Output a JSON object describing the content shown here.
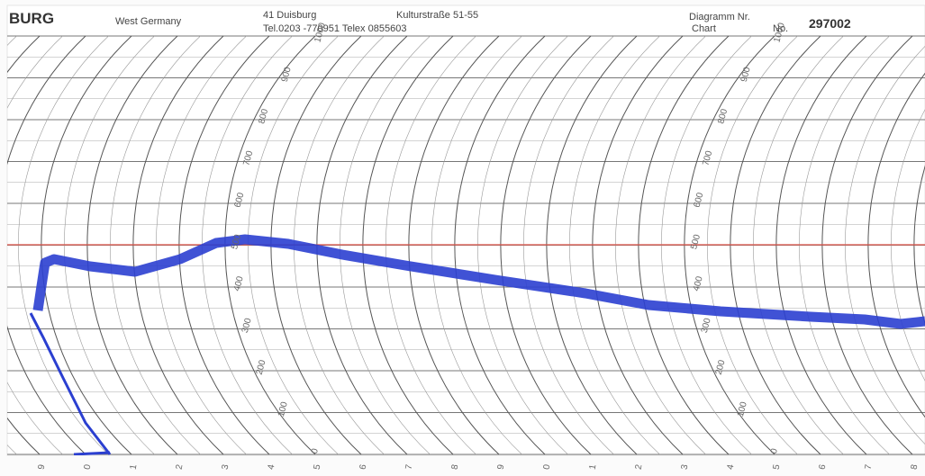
{
  "header": {
    "brand": "BURG",
    "country": "West Germany",
    "city": "41 Duisburg",
    "street": "Kulturstraße 51-55",
    "phone": "Tel.0203 -770951 Telex 0855603",
    "chart_label_de": "Diagramm Nr.",
    "chart_label_en": "Chart",
    "number_label": "No.",
    "number": "297002"
  },
  "scale_labels": [
    "0",
    "100",
    "200",
    "300",
    "400",
    "500",
    "600",
    "700",
    "800",
    "900",
    "1000"
  ],
  "hour_labels": [
    "9",
    "0",
    "1",
    "2",
    "3",
    "4",
    "5",
    "6",
    "7",
    "8",
    "9",
    "0",
    "1",
    "2",
    "3",
    "4",
    "5",
    "6",
    "7",
    "8"
  ]
}
